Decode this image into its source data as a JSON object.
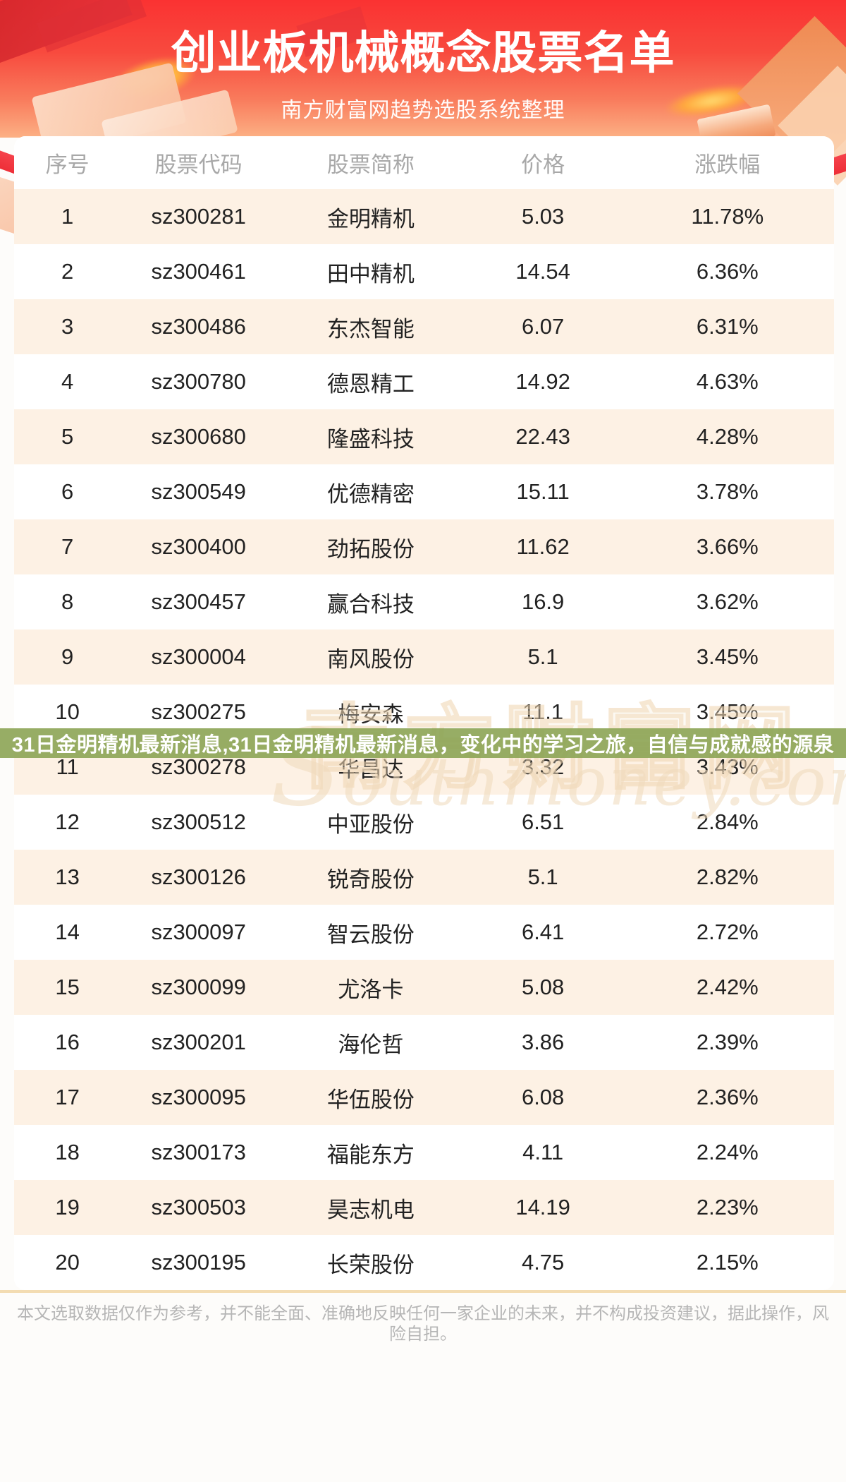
{
  "header": {
    "title": "创业板机械概念股票名单",
    "subtitle": "南方财富网趋势选股系统整理"
  },
  "table": {
    "columns": [
      "序号",
      "股票代码",
      "股票简称",
      "价格",
      "涨跌幅"
    ],
    "rows": [
      {
        "no": "1",
        "code": "sz300281",
        "name": "金明精机",
        "price": "5.03",
        "change": "11.78%"
      },
      {
        "no": "2",
        "code": "sz300461",
        "name": "田中精机",
        "price": "14.54",
        "change": "6.36%"
      },
      {
        "no": "3",
        "code": "sz300486",
        "name": "东杰智能",
        "price": "6.07",
        "change": "6.31%"
      },
      {
        "no": "4",
        "code": "sz300780",
        "name": "德恩精工",
        "price": "14.92",
        "change": "4.63%"
      },
      {
        "no": "5",
        "code": "sz300680",
        "name": "隆盛科技",
        "price": "22.43",
        "change": "4.28%"
      },
      {
        "no": "6",
        "code": "sz300549",
        "name": "优德精密",
        "price": "15.11",
        "change": "3.78%"
      },
      {
        "no": "7",
        "code": "sz300400",
        "name": "劲拓股份",
        "price": "11.62",
        "change": "3.66%"
      },
      {
        "no": "8",
        "code": "sz300457",
        "name": "赢合科技",
        "price": "16.9",
        "change": "3.62%"
      },
      {
        "no": "9",
        "code": "sz300004",
        "name": "南风股份",
        "price": "5.1",
        "change": "3.45%"
      },
      {
        "no": "10",
        "code": "sz300275",
        "name": "梅安森",
        "price": "11.1",
        "change": "3.45%"
      },
      {
        "no": "11",
        "code": "sz300278",
        "name": "华昌达",
        "price": "3.32",
        "change": "3.43%"
      },
      {
        "no": "12",
        "code": "sz300512",
        "name": "中亚股份",
        "price": "6.51",
        "change": "2.84%"
      },
      {
        "no": "13",
        "code": "sz300126",
        "name": "锐奇股份",
        "price": "5.1",
        "change": "2.82%"
      },
      {
        "no": "14",
        "code": "sz300097",
        "name": "智云股份",
        "price": "6.41",
        "change": "2.72%"
      },
      {
        "no": "15",
        "code": "sz300099",
        "name": "尤洛卡",
        "price": "5.08",
        "change": "2.42%"
      },
      {
        "no": "16",
        "code": "sz300201",
        "name": "海伦哲",
        "price": "3.86",
        "change": "2.39%"
      },
      {
        "no": "17",
        "code": "sz300095",
        "name": "华伍股份",
        "price": "6.08",
        "change": "2.36%"
      },
      {
        "no": "18",
        "code": "sz300173",
        "name": "福能东方",
        "price": "4.11",
        "change": "2.24%"
      },
      {
        "no": "19",
        "code": "sz300503",
        "name": "昊志机电",
        "price": "14.19",
        "change": "2.23%"
      },
      {
        "no": "20",
        "code": "sz300195",
        "name": "长荣股份",
        "price": "4.75",
        "change": "2.15%"
      }
    ]
  },
  "overlay_banner": {
    "text": "31日金明精机最新消息,31日金明精机最新消息，变化中的学习之旅，自信与成就感的源泉"
  },
  "watermark": {
    "cn": "南方财富网",
    "en_initial": "S",
    "en_rest": "outhmoney.com"
  },
  "footer": {
    "disclaimer": "本文选取数据仅作为参考，并不能全面、准确地反映任何一家企业的未来，并不构成投资建议，据此操作，风险自担。"
  },
  "colors": {
    "header_red_top": "#fa3232",
    "header_red_bottom": "#fcb084",
    "row_alt_peach": "#fdf1e4",
    "banner_olive": "#8ca455",
    "divider_tan": "#f3dcb2",
    "table_header_gray": "#a8a8a8",
    "row_text_dark": "#222222",
    "disclaimer_gray": "#b6b6b6",
    "watermark_tan": "#f0dbbd",
    "title_white": "#ffffff"
  }
}
